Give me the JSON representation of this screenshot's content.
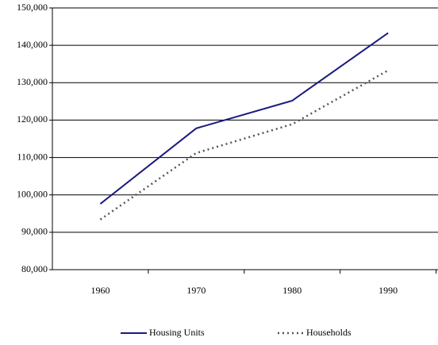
{
  "chart_data": {
    "type": "line",
    "categories": [
      "1960",
      "1970",
      "1980",
      "1990"
    ],
    "series": [
      {
        "name": "Housing Units",
        "color": "#1a1a80",
        "line_style": "solid",
        "values": [
          97600,
          117800,
          125200,
          143300
        ]
      },
      {
        "name": "Households",
        "color": "#555555",
        "line_style": "dotted",
        "values": [
          93400,
          111200,
          118900,
          133300
        ]
      }
    ],
    "ylim": [
      80000,
      150000
    ],
    "yticks": [
      {
        "value": 80000,
        "label": "80,000"
      },
      {
        "value": 90000,
        "label": "90,000"
      },
      {
        "value": 100000,
        "label": "100,000"
      },
      {
        "value": 110000,
        "label": "110,000"
      },
      {
        "value": 120000,
        "label": "120,000"
      },
      {
        "value": 130000,
        "label": "130,000"
      },
      {
        "value": 140000,
        "label": "140,000"
      },
      {
        "value": 150000,
        "label": "150,000"
      }
    ],
    "grid": true,
    "legend": "bottom"
  }
}
